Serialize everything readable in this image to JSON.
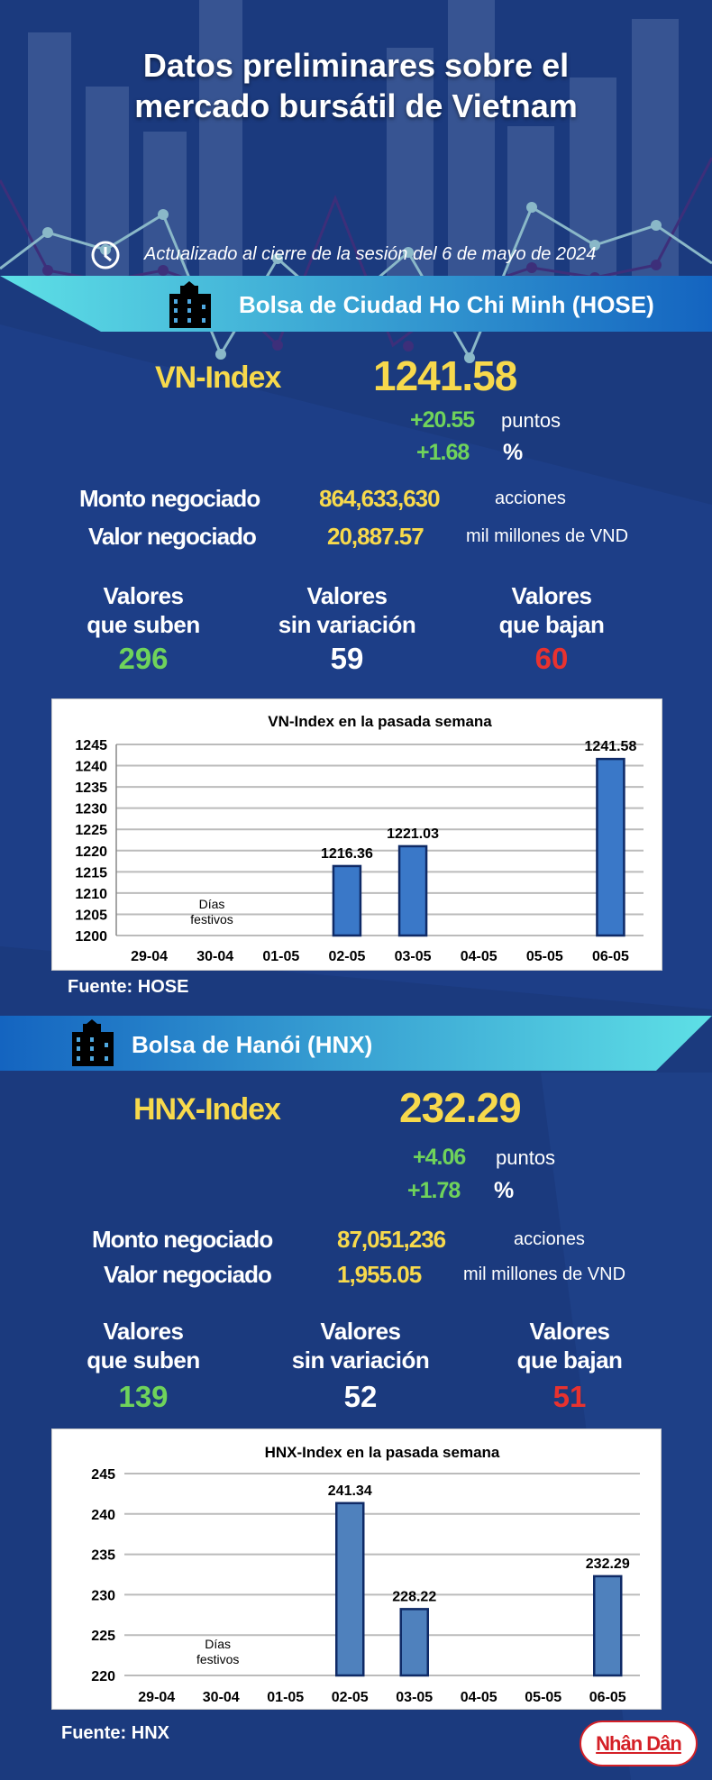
{
  "header": {
    "title_line1": "Datos preliminares sobre el",
    "title_line2": "mercado bursátil de Vietnam",
    "updated": "Actualizado al cierre de la sesión del 6 de mayo de 2024",
    "clock_icon": "clock-icon"
  },
  "colors": {
    "background": "#1b3a7e",
    "yellow": "#f7d94c",
    "green": "#6fd35b",
    "red": "#e8322f",
    "bar": "#3f78c2"
  },
  "hose": {
    "banner": "Bolsa de Ciudad Ho Chi Minh (HOSE)",
    "index_label": "VN-Index",
    "index_value": "1241.58",
    "change_points": "+20.55",
    "points_unit": "puntos",
    "change_pct": "+1.68",
    "pct_unit": "%",
    "volume_label": "Monto negociado",
    "volume_value": "864,633,630",
    "volume_unit": "acciones",
    "value_label": "Valor negociado",
    "value_value": "20,887.57",
    "value_unit": "mil millones de VND",
    "up": {
      "line1": "Valores",
      "line2": "que suben",
      "count": "296"
    },
    "flat": {
      "line1": "Valores",
      "line2": "sin variación",
      "count": "59"
    },
    "down": {
      "line1": "Valores",
      "line2": "que bajan",
      "count": "60"
    },
    "source": "Fuente: HOSE"
  },
  "hnx": {
    "banner": "Bolsa de Hanói (HNX)",
    "index_label": "HNX-Index",
    "index_value": "232.29",
    "change_points": "+4.06",
    "points_unit": "puntos",
    "change_pct": "+1.78",
    "pct_unit": "%",
    "volume_label": "Monto negociado",
    "volume_value": "87,051,236",
    "volume_unit": "acciones",
    "value_label": "Valor negociado",
    "value_value": "1,955.05",
    "value_unit": "mil millones de VND",
    "up": {
      "line1": "Valores",
      "line2": "que suben",
      "count": "139"
    },
    "flat": {
      "line1": "Valores",
      "line2": "sin variación",
      "count": "52"
    },
    "down": {
      "line1": "Valores",
      "line2": "que bajan",
      "count": "51"
    },
    "source": "Fuente:  HNX"
  },
  "chart_data": [
    {
      "type": "bar",
      "title": "VN-Index en la pasada semana",
      "categories": [
        "29-04",
        "30-04",
        "01-05",
        "02-05",
        "03-05",
        "04-05",
        "05-05",
        "06-05"
      ],
      "values": [
        null,
        null,
        null,
        1216.36,
        1221.03,
        null,
        null,
        1241.58
      ],
      "data_labels": [
        "",
        "",
        "",
        "1216.36",
        "1221.03",
        "",
        "",
        "1241.58"
      ],
      "ylim": [
        1200,
        1245
      ],
      "yticks": [
        "1200",
        "1205",
        "1210",
        "1215",
        "1220",
        "1225",
        "1230",
        "1235",
        "1240",
        "1245"
      ],
      "annotation": {
        "line1": "Días",
        "line2": "festivos"
      },
      "grid": true
    },
    {
      "type": "bar",
      "title": "HNX-Index en la pasada semana",
      "categories": [
        "29-04",
        "30-04",
        "01-05",
        "02-05",
        "03-05",
        "04-05",
        "05-05",
        "06-05"
      ],
      "values": [
        null,
        null,
        null,
        241.34,
        228.22,
        null,
        null,
        232.29
      ],
      "data_labels": [
        "",
        "",
        "",
        "241.34",
        "228.22",
        "",
        "",
        "232.29"
      ],
      "ylim": [
        220,
        245
      ],
      "yticks": [
        "220",
        "225",
        "230",
        "235",
        "240",
        "245"
      ],
      "annotation": {
        "line1": "Días",
        "line2": "festivos"
      },
      "grid": true
    }
  ],
  "logo": "Nhân Dân"
}
